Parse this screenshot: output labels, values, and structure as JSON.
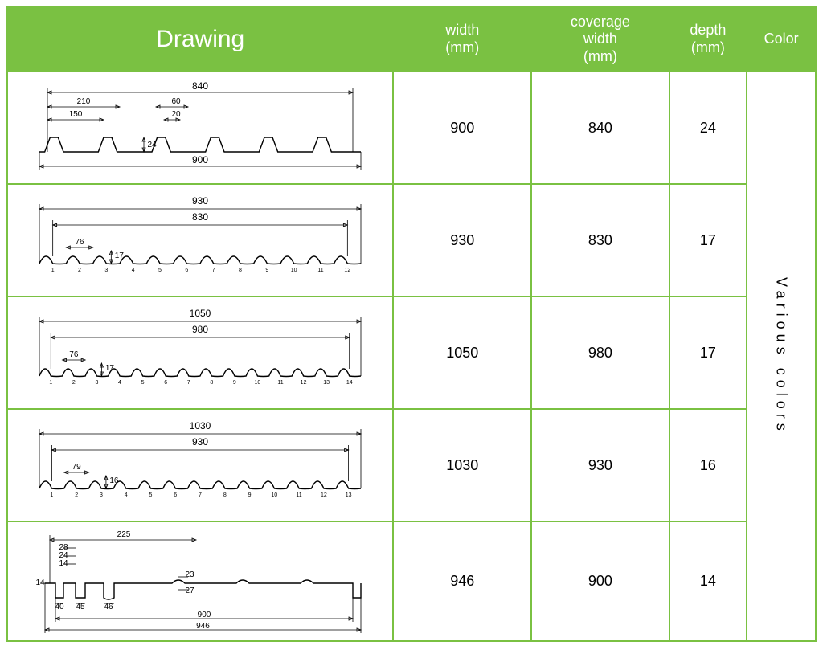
{
  "header": {
    "drawing": "Drawing",
    "width": "width\n(mm)",
    "coverage": "coverage\nwidth\n(mm)",
    "depth": "depth\n(mm)",
    "color": "Color"
  },
  "colors": {
    "header_bg": "#7ac142",
    "header_fg": "#ffffff",
    "border": "#7ac142",
    "cell_bg": "#ffffff",
    "cell_fg": "#000000"
  },
  "color_cell_text": "Various colors",
  "rows": [
    {
      "width": "900",
      "coverage": "840",
      "depth": "24",
      "drawing": {
        "type": "trapezoid",
        "top_dim": "840",
        "bottom_dim": "900",
        "left1": "210",
        "left2": "150",
        "mid_top": "60",
        "mid_inner": "20",
        "height": "24"
      }
    },
    {
      "width": "930",
      "coverage": "830",
      "depth": "17",
      "drawing": {
        "type": "corrugated",
        "waves": 12,
        "top_dim": "930",
        "inner_dim": "830",
        "pitch": "76",
        "height": "17"
      }
    },
    {
      "width": "1050",
      "coverage": "980",
      "depth": "17",
      "drawing": {
        "type": "corrugated",
        "waves": 14,
        "top_dim": "1050",
        "inner_dim": "980",
        "pitch": "76",
        "height": "17"
      }
    },
    {
      "width": "1030",
      "coverage": "930",
      "depth": "16",
      "drawing": {
        "type": "corrugated",
        "waves": 13,
        "top_dim": "1030",
        "inner_dim": "930",
        "pitch": "79",
        "height": "16"
      }
    },
    {
      "width": "946",
      "coverage": "900",
      "depth": "14",
      "drawing": {
        "type": "special",
        "top_dim": "225",
        "a": "28",
        "b": "24",
        "c": "14",
        "lead": "14",
        "g1": "40",
        "g2": "45",
        "g3": "46",
        "mid1": "23",
        "mid2": "27",
        "bottom1": "900",
        "bottom2": "946",
        "bumps": 4
      }
    }
  ]
}
